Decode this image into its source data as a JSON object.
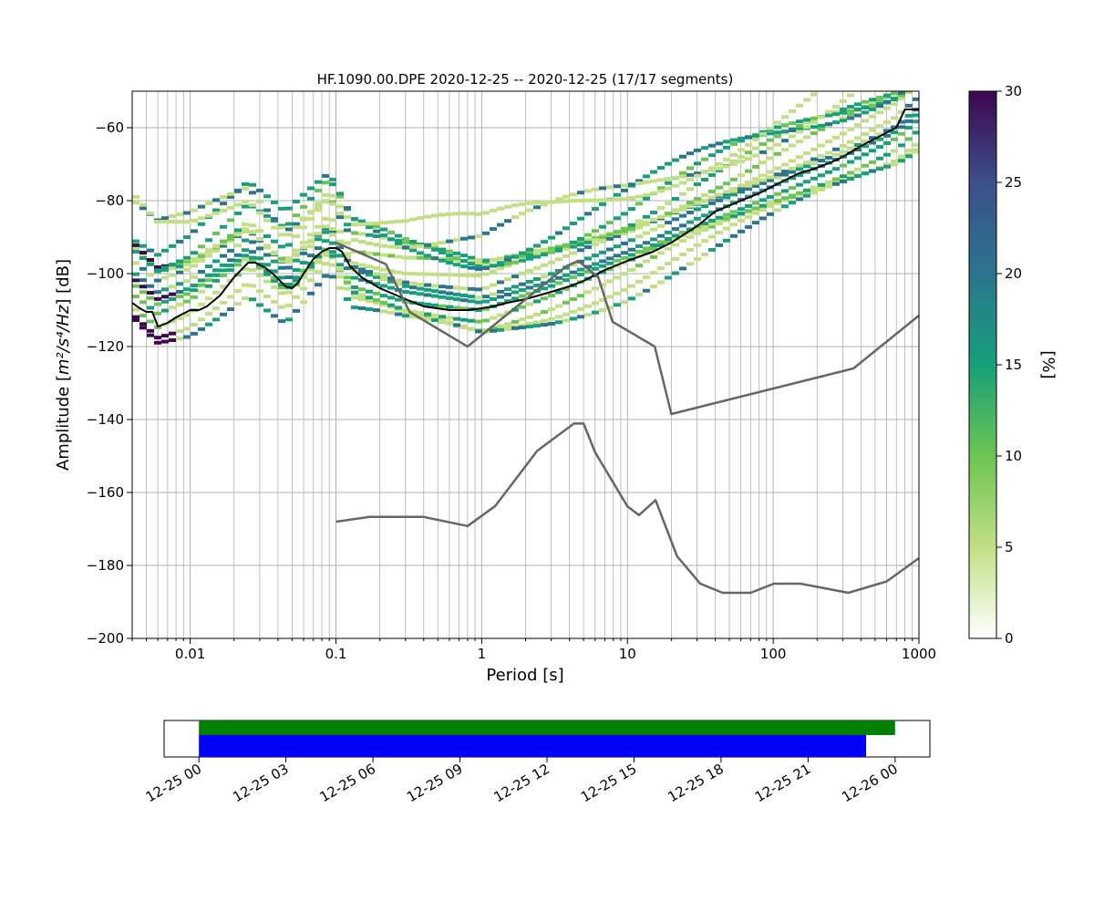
{
  "chart_data": [
    {
      "type": "heatmap",
      "title": "HF.1090.00.DPE   2020-12-25 -- 2020-12-25  (17/17 segments)",
      "xlabel": "Period [s]",
      "ylabel_prefix": "Amplitude [",
      "ylabel_math": "m²/s⁴/Hz",
      "ylabel_suffix": "] [dB]",
      "xscale": "log",
      "xlim": [
        0.004,
        1000
      ],
      "ylim": [
        -200,
        -50
      ],
      "x_ticks": [
        {
          "value": 0.01,
          "label": "0.01"
        },
        {
          "value": 0.1,
          "label": "0.1"
        },
        {
          "value": 1,
          "label": "1"
        },
        {
          "value": 10,
          "label": "10"
        },
        {
          "value": 100,
          "label": "100"
        },
        {
          "value": 1000,
          "label": "1000"
        }
      ],
      "y_ticks": [
        {
          "value": -60,
          "label": "−60"
        },
        {
          "value": -80,
          "label": "−80"
        },
        {
          "value": -100,
          "label": "−100"
        },
        {
          "value": -120,
          "label": "−120"
        },
        {
          "value": -140,
          "label": "−140"
        },
        {
          "value": -160,
          "label": "−160"
        },
        {
          "value": -180,
          "label": "−180"
        },
        {
          "value": -200,
          "label": "−200"
        }
      ],
      "grid": true,
      "colorbar": {
        "label": "[%]",
        "range": [
          0,
          30
        ],
        "ticks": [
          {
            "value": 0,
            "label": "0"
          },
          {
            "value": 5,
            "label": "5"
          },
          {
            "value": 10,
            "label": "10"
          },
          {
            "value": 15,
            "label": "15"
          },
          {
            "value": 20,
            "label": "20"
          },
          {
            "value": 25,
            "label": "25"
          },
          {
            "value": 30,
            "label": "30"
          }
        ],
        "colormap": [
          "#ffffff",
          "#c2df83",
          "#6cc551",
          "#17a07a",
          "#2b758e",
          "#3c4f8a",
          "#3e0751"
        ]
      },
      "series": [
        {
          "role": "psd-bands",
          "anchors": [
            [
              0.004,
              -101
            ],
            [
              0.006,
              -107
            ],
            [
              0.01,
              -104
            ],
            [
              0.025,
              -93
            ],
            [
              0.045,
              -102
            ],
            [
              0.09,
              -90
            ],
            [
              0.13,
              -101
            ],
            [
              0.3,
              -105
            ],
            [
              1,
              -108
            ],
            [
              3,
              -102
            ],
            [
              10,
              -94
            ],
            [
              30,
              -85
            ],
            [
              100,
              -76
            ],
            [
              300,
              -68
            ],
            [
              700,
              -61
            ],
            [
              1000,
              -56
            ]
          ],
          "offsets": [
            [
              -8,
              7
            ],
            [
              -6,
              6
            ],
            [
              -4,
              6
            ],
            [
              -2,
              10
            ],
            [
              0,
              10
            ],
            [
              2,
              8
            ],
            [
              4,
              12
            ],
            [
              6,
              10
            ],
            [
              8,
              14
            ],
            [
              10,
              9
            ],
            [
              12,
              11
            ],
            [
              14,
              6
            ],
            [
              -10,
              4
            ],
            [
              16,
              3
            ],
            [
              18,
              5
            ]
          ]
        },
        {
          "role": "mean",
          "color": "#000000",
          "points": [
            [
              0.004,
              -108
            ],
            [
              0.0045,
              -109.5
            ],
            [
              0.005,
              -110.5
            ],
            [
              0.0055,
              -110.5
            ],
            [
              0.006,
              -114.5
            ],
            [
              0.007,
              -113.5
            ],
            [
              0.008,
              -112
            ],
            [
              0.01,
              -110
            ],
            [
              0.0115,
              -110
            ],
            [
              0.013,
              -109
            ],
            [
              0.016,
              -106
            ],
            [
              0.02,
              -101
            ],
            [
              0.025,
              -97
            ],
            [
              0.028,
              -97
            ],
            [
              0.033,
              -98.5
            ],
            [
              0.038,
              -100.5
            ],
            [
              0.045,
              -103.5
            ],
            [
              0.05,
              -104
            ],
            [
              0.055,
              -102.5
            ],
            [
              0.06,
              -100
            ],
            [
              0.07,
              -96
            ],
            [
              0.08,
              -94
            ],
            [
              0.09,
              -93
            ],
            [
              0.1,
              -93
            ],
            [
              0.11,
              -94
            ],
            [
              0.125,
              -98
            ],
            [
              0.15,
              -101
            ],
            [
              0.2,
              -104
            ],
            [
              0.3,
              -107
            ],
            [
              0.4,
              -109
            ],
            [
              0.6,
              -110
            ],
            [
              0.8,
              -110
            ],
            [
              1,
              -109.5
            ],
            [
              1.2,
              -109
            ],
            [
              1.5,
              -108
            ],
            [
              2,
              -107
            ],
            [
              3,
              -105
            ],
            [
              4,
              -103.5
            ],
            [
              5,
              -102
            ],
            [
              7,
              -99
            ],
            [
              10,
              -96.5
            ],
            [
              15,
              -94
            ],
            [
              20,
              -91.5
            ],
            [
              30,
              -87
            ],
            [
              40,
              -83
            ],
            [
              60,
              -80
            ],
            [
              80,
              -78
            ],
            [
              100,
              -76
            ],
            [
              150,
              -72.5
            ],
            [
              200,
              -71
            ],
            [
              250,
              -69.5
            ],
            [
              300,
              -68
            ],
            [
              400,
              -65
            ],
            [
              500,
              -63
            ],
            [
              700,
              -60
            ],
            [
              800,
              -55
            ],
            [
              1000,
              -55
            ]
          ]
        },
        {
          "role": "high-noise-model",
          "color": "#666666",
          "points": [
            [
              0.1,
              -91.5
            ],
            [
              0.22,
              -97.4
            ],
            [
              0.32,
              -110.5
            ],
            [
              0.8,
              -120
            ],
            [
              3.8,
              -98
            ],
            [
              4.6,
              -96.5
            ],
            [
              6.3,
              -101
            ],
            [
              7.9,
              -113.2
            ],
            [
              15.4,
              -120
            ],
            [
              20,
              -138.5
            ],
            [
              354.8,
              -126
            ],
            [
              1000,
              -111.5
            ]
          ]
        },
        {
          "role": "low-noise-model",
          "color": "#666666",
          "points": [
            [
              0.1,
              -168
            ],
            [
              0.17,
              -166.7
            ],
            [
              0.4,
              -166.7
            ],
            [
              0.8,
              -169.2
            ],
            [
              1.24,
              -163.7
            ],
            [
              2.4,
              -148.6
            ],
            [
              4.3,
              -141.1
            ],
            [
              5,
              -141.1
            ],
            [
              6,
              -149
            ],
            [
              10,
              -163.8
            ],
            [
              12,
              -166.2
            ],
            [
              15.6,
              -162.1
            ],
            [
              21.9,
              -177.5
            ],
            [
              31.6,
              -185
            ],
            [
              45,
              -187.5
            ],
            [
              70,
              -187.5
            ],
            [
              101,
              -185
            ],
            [
              154,
              -185
            ],
            [
              328,
              -187.5
            ],
            [
              600,
              -184.4
            ],
            [
              1000,
              -178
            ]
          ]
        }
      ]
    },
    {
      "type": "bar",
      "orientation": "horizontal",
      "time_ticks": [
        {
          "value": 0,
          "label": "12-25 00"
        },
        {
          "value": 3,
          "label": "12-25 03"
        },
        {
          "value": 6,
          "label": "12-25 06"
        },
        {
          "value": 9,
          "label": "12-25 09"
        },
        {
          "value": 12,
          "label": "12-25 12"
        },
        {
          "value": 15,
          "label": "12-25 15"
        },
        {
          "value": 18,
          "label": "12-25 18"
        },
        {
          "value": 21,
          "label": "12-25 21"
        },
        {
          "value": 24,
          "label": "12-26 00"
        }
      ],
      "xlim_hours": [
        -1.2,
        25.2
      ],
      "bars": [
        {
          "start": 0,
          "end": 24,
          "color": "#008000"
        },
        {
          "start": 0,
          "end": 23,
          "color": "#0000ff"
        }
      ]
    }
  ]
}
